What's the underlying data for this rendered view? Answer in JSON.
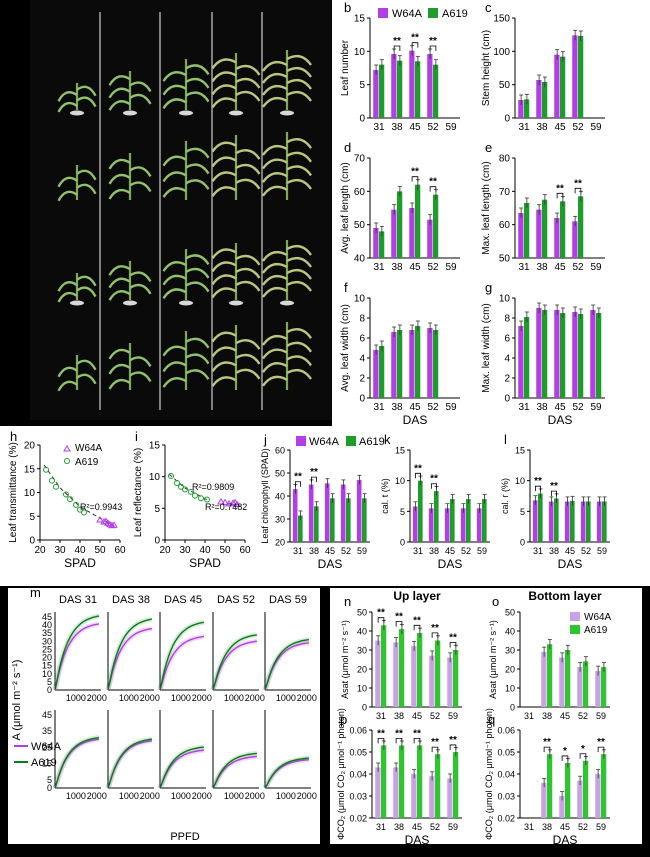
{
  "colors": {
    "w64a": "#b23fe6",
    "a619": "#1f9d2a",
    "w64a_light": "#c9a2e6",
    "a619_light": "#2fc52f",
    "photo_bg": "#0a0a0a",
    "panel_bg": "#ffffff"
  },
  "legend": {
    "w64a": "W64A",
    "a619": "A619"
  },
  "photo": {
    "description_free": true
  },
  "chart_data": [
    {
      "id": "b",
      "label": "b",
      "type": "bar",
      "ylabel": "Leaf number",
      "xlabel": "",
      "categories": [
        "31",
        "38",
        "45",
        "52",
        "59"
      ],
      "ylim": [
        0,
        15
      ],
      "yticks": [
        0,
        5,
        10,
        15
      ],
      "series": [
        {
          "name": "W64A",
          "values": [
            7.2,
            9.6,
            10.1,
            9.6,
            null
          ]
        },
        {
          "name": "A619",
          "values": [
            8.0,
            8.6,
            8.5,
            8.0,
            null
          ]
        }
      ],
      "sig": [
        "",
        "**",
        "**",
        "**",
        ""
      ]
    },
    {
      "id": "c",
      "label": "c",
      "type": "bar",
      "ylabel": "Stem height (cm)",
      "xlabel": "",
      "categories": [
        "31",
        "38",
        "45",
        "52",
        "59"
      ],
      "ylim": [
        0,
        150
      ],
      "yticks": [
        0,
        50,
        100,
        150
      ],
      "series": [
        {
          "name": "W64A",
          "values": [
            27,
            57,
            95,
            124,
            null
          ]
        },
        {
          "name": "A619",
          "values": [
            28,
            54,
            92,
            123,
            null
          ]
        }
      ],
      "sig": [
        "",
        "",
        "",
        "",
        ""
      ]
    },
    {
      "id": "d",
      "label": "d",
      "type": "bar",
      "ylabel": "Avg. leaf length (cm)",
      "xlabel": "",
      "categories": [
        "31",
        "38",
        "45",
        "52",
        "59"
      ],
      "ylim": [
        40,
        70
      ],
      "yticks": [
        40,
        50,
        60,
        70
      ],
      "series": [
        {
          "name": "W64A",
          "values": [
            49,
            54.5,
            55,
            51.5,
            null
          ]
        },
        {
          "name": "A619",
          "values": [
            48,
            60,
            62,
            59,
            null
          ]
        }
      ],
      "sig": [
        "",
        "",
        "**",
        "**",
        ""
      ]
    },
    {
      "id": "e",
      "label": "e",
      "type": "bar",
      "ylabel": "Max. leaf length (cm)",
      "xlabel": "",
      "categories": [
        "31",
        "38",
        "45",
        "52",
        "59"
      ],
      "ylim": [
        50,
        80
      ],
      "yticks": [
        50,
        60,
        70,
        80
      ],
      "series": [
        {
          "name": "W64A",
          "values": [
            63.5,
            64.5,
            62,
            61,
            null
          ]
        },
        {
          "name": "A619",
          "values": [
            66.5,
            67.5,
            67,
            68.5,
            null
          ]
        }
      ],
      "sig": [
        "",
        "",
        "**",
        "**",
        ""
      ]
    },
    {
      "id": "f",
      "label": "f",
      "type": "bar",
      "ylabel": "Avg. leaf width (cm)",
      "xlabel": "DAS",
      "categories": [
        "31",
        "38",
        "45",
        "52",
        "59"
      ],
      "ylim": [
        0,
        10
      ],
      "yticks": [
        0,
        2,
        4,
        6,
        8,
        10
      ],
      "series": [
        {
          "name": "W64A",
          "values": [
            4.8,
            6.6,
            6.8,
            7.0,
            null
          ]
        },
        {
          "name": "A619",
          "values": [
            5.2,
            6.8,
            7.2,
            6.8,
            null
          ]
        }
      ],
      "sig": [
        "",
        "",
        "",
        "",
        ""
      ]
    },
    {
      "id": "g",
      "label": "g",
      "type": "bar",
      "ylabel": "Max. leaf width (cm)",
      "xlabel": "DAS",
      "categories": [
        "31",
        "38",
        "45",
        "52",
        "59"
      ],
      "ylim": [
        0,
        10
      ],
      "yticks": [
        0,
        2,
        4,
        6,
        8,
        10
      ],
      "series": [
        {
          "name": "W64A",
          "values": [
            7.2,
            9.0,
            8.8,
            8.6,
            8.8
          ]
        },
        {
          "name": "A619",
          "values": [
            8.1,
            8.8,
            8.5,
            8.4,
            8.5
          ]
        }
      ],
      "sig": [
        "",
        "",
        "",
        "",
        ""
      ]
    },
    {
      "id": "h",
      "label": "h",
      "type": "scatter",
      "ylabel": "Leaf transmittance (%)",
      "xlabel": "SPAD",
      "xlim": [
        20,
        60
      ],
      "ylim": [
        0,
        20
      ],
      "xticks": [
        20,
        30,
        40,
        50,
        60
      ],
      "yticks": [
        0,
        5,
        10,
        15,
        20
      ],
      "annotation": "R²=0.9943",
      "series": [
        {
          "name": "W64A",
          "points": [
            [
              50,
              4.2
            ],
            [
              52,
              3.8
            ],
            [
              54,
              3.5
            ],
            [
              55,
              3.2
            ],
            [
              56,
              3.0
            ],
            [
              57,
              3.1
            ],
            [
              53,
              3.9
            ]
          ]
        },
        {
          "name": "A619",
          "points": [
            [
              23,
              14.8
            ],
            [
              26,
              12.5
            ],
            [
              28,
              11.2
            ],
            [
              33,
              9.6
            ],
            [
              35,
              8.6
            ],
            [
              38,
              7.4
            ],
            [
              40,
              6.4
            ],
            [
              42,
              5.8
            ]
          ]
        }
      ],
      "fit": [
        [
          22,
          15.8
        ],
        [
          30,
          11
        ],
        [
          40,
          7
        ],
        [
          50,
          4.6
        ],
        [
          57,
          3.0
        ]
      ]
    },
    {
      "id": "i",
      "label": "i",
      "type": "scatter",
      "ylabel": "Leaf reflectance (%)",
      "xlabel": "SPAD",
      "xlim": [
        20,
        60
      ],
      "ylim": [
        0,
        15
      ],
      "xticks": [
        20,
        30,
        40,
        50,
        60
      ],
      "yticks": [
        0,
        5,
        10,
        15
      ],
      "annotations": [
        "R²=0.9809",
        "R²=0.7482"
      ],
      "series": [
        {
          "name": "W64A",
          "points": [
            [
              48,
              6.0
            ],
            [
              50,
              5.9
            ],
            [
              52,
              5.7
            ],
            [
              54,
              5.8
            ],
            [
              55,
              5.9
            ],
            [
              56,
              5.6
            ]
          ]
        },
        {
          "name": "A619",
          "points": [
            [
              23,
              10.1
            ],
            [
              26,
              9.0
            ],
            [
              28,
              8.4
            ],
            [
              30,
              8.0
            ],
            [
              33,
              7.6
            ],
            [
              35,
              7.0
            ],
            [
              38,
              6.6
            ],
            [
              41,
              6.4
            ]
          ]
        }
      ],
      "fit": [
        [
          22,
          10.4
        ],
        [
          30,
          8.2
        ],
        [
          42,
          6.2
        ]
      ]
    },
    {
      "id": "j",
      "label": "j",
      "type": "bar",
      "ylabel": "Leaf chlorophyll (SPAD)",
      "xlabel": "DAS",
      "categories": [
        "31",
        "38",
        "45",
        "52",
        "59"
      ],
      "ylim": [
        20,
        60
      ],
      "yticks": [
        20,
        30,
        40,
        50,
        60
      ],
      "series": [
        {
          "name": "W64A",
          "values": [
            43,
            45,
            45.5,
            45,
            47
          ]
        },
        {
          "name": "A619",
          "values": [
            31.5,
            35.5,
            39,
            39,
            39
          ]
        }
      ],
      "sig": [
        "**",
        "**",
        "",
        "",
        ""
      ]
    },
    {
      "id": "k",
      "label": "k",
      "type": "bar",
      "ylabel": "cal. t (%)",
      "xlabel": "DAS",
      "categories": [
        "31",
        "38",
        "45",
        "52",
        "59"
      ],
      "ylim": [
        0,
        15
      ],
      "yticks": [
        0,
        5,
        10,
        15
      ],
      "series": [
        {
          "name": "W64A",
          "values": [
            5.8,
            5.5,
            5.5,
            5.5,
            5.5
          ]
        },
        {
          "name": "A619",
          "values": [
            10,
            8.3,
            7.0,
            7.0,
            7.0
          ]
        }
      ],
      "sig": [
        "**",
        "**",
        "",
        "",
        ""
      ]
    },
    {
      "id": "l",
      "label": "l",
      "type": "bar",
      "ylabel": "cal. r (%)",
      "xlabel": "DAS",
      "categories": [
        "31",
        "38",
        "45",
        "52",
        "59"
      ],
      "ylim": [
        0,
        15
      ],
      "yticks": [
        0,
        5,
        10,
        15
      ],
      "series": [
        {
          "name": "W64A",
          "values": [
            6.8,
            6.6,
            6.6,
            6.6,
            6.6
          ]
        },
        {
          "name": "A619",
          "values": [
            7.9,
            7.1,
            6.7,
            6.6,
            6.6
          ]
        }
      ],
      "sig": [
        "**",
        "**",
        "",
        "",
        ""
      ]
    },
    {
      "id": "m",
      "label": "m",
      "type": "line",
      "ylabel": "A (μmol m⁻² s⁻¹)",
      "xlabel": "PPFD",
      "panel_titles": [
        "DAS 31",
        "DAS 38",
        "DAS 45",
        "DAS 52",
        "DAS 59"
      ],
      "xticks": [
        1000,
        2000
      ],
      "xlim": [
        0,
        2200
      ],
      "yticks": [
        0,
        5,
        10,
        15,
        20,
        25,
        30,
        35,
        40,
        45
      ],
      "ylim": [
        0,
        48
      ],
      "up_asymptote": {
        "W64A": [
          43,
          40,
          35,
          32,
          31
        ],
        "A619": [
          48,
          46,
          44,
          36,
          33
        ]
      },
      "bottom_asymptote": {
        "W64A": [
          32,
          31,
          25,
          21,
          19
        ],
        "A619": [
          33,
          32,
          27,
          23,
          20
        ]
      }
    },
    {
      "id": "n",
      "label": "n",
      "type": "bar",
      "title": "Up layer",
      "ylabel": "Asat (μmol m⁻² s⁻¹)",
      "xlabel": "",
      "categories": [
        "31",
        "38",
        "45",
        "52",
        "59"
      ],
      "ylim": [
        0,
        50
      ],
      "yticks": [
        0,
        10,
        20,
        30,
        40,
        50
      ],
      "series": [
        {
          "name": "W64A",
          "values": [
            35,
            34,
            32,
            27,
            26
          ]
        },
        {
          "name": "A619",
          "values": [
            43,
            41,
            39,
            35,
            30
          ]
        }
      ],
      "sig": [
        "**",
        "**",
        "**",
        "**",
        "**"
      ]
    },
    {
      "id": "o",
      "label": "o",
      "type": "bar",
      "title": "Bottom layer",
      "ylabel": "Asat (μmol m⁻² s⁻¹)",
      "xlabel": "",
      "categories": [
        "31",
        "38",
        "45",
        "52",
        "59"
      ],
      "ylim": [
        0,
        50
      ],
      "yticks": [
        0,
        10,
        20,
        30,
        40,
        50
      ],
      "series": [
        {
          "name": "W64A",
          "values": [
            null,
            29,
            26,
            21,
            19
          ]
        },
        {
          "name": "A619",
          "values": [
            null,
            33,
            30,
            24,
            21
          ]
        }
      ],
      "sig": [
        "",
        "",
        "",
        "",
        ""
      ]
    },
    {
      "id": "p",
      "label": "p",
      "type": "bar",
      "ylabel": "ΦCO₂ (μmol CO₂ μmol⁻¹ photon)",
      "xlabel": "DAS",
      "categories": [
        "31",
        "38",
        "45",
        "52",
        "59"
      ],
      "ylim": [
        0.02,
        0.06
      ],
      "yticks": [
        0.02,
        0.03,
        0.04,
        0.05,
        0.06
      ],
      "series": [
        {
          "name": "W64A",
          "values": [
            0.043,
            0.043,
            0.04,
            0.039,
            0.038
          ]
        },
        {
          "name": "A619",
          "values": [
            0.053,
            0.053,
            0.053,
            0.049,
            0.05
          ]
        }
      ],
      "sig": [
        "**",
        "**",
        "**",
        "**",
        "**"
      ]
    },
    {
      "id": "q",
      "label": "q",
      "type": "bar",
      "ylabel": "ΦCO₂ (μmol CO₂ μmol⁻¹ photon)",
      "xlabel": "DAS",
      "categories": [
        "31",
        "38",
        "45",
        "52",
        "59"
      ],
      "ylim": [
        0.02,
        0.06
      ],
      "yticks": [
        0.02,
        0.03,
        0.04,
        0.05,
        0.06
      ],
      "series": [
        {
          "name": "W64A",
          "values": [
            null,
            0.036,
            0.03,
            0.037,
            0.04
          ]
        },
        {
          "name": "A619",
          "values": [
            null,
            0.049,
            0.045,
            0.046,
            0.049
          ]
        }
      ],
      "sig": [
        "",
        "**",
        "*",
        "*",
        "**"
      ]
    }
  ]
}
